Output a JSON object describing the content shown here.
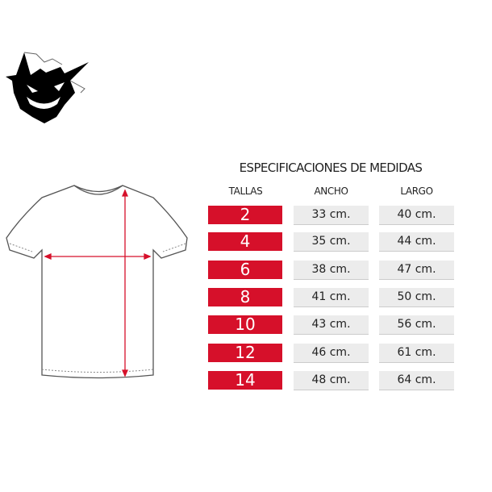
{
  "title": "ESPECIFICACIONES DE MEDIDAS",
  "headers": {
    "size": "TALLAS",
    "width": "ANCHO",
    "length": "LARGO"
  },
  "rows": [
    {
      "size": "2",
      "width": "33 cm.",
      "length": "40 cm."
    },
    {
      "size": "4",
      "width": "35 cm.",
      "length": "44 cm."
    },
    {
      "size": "6",
      "width": "38 cm.",
      "length": "47 cm."
    },
    {
      "size": "8",
      "width": "41 cm.",
      "length": "50 cm."
    },
    {
      "size": "10",
      "width": "43 cm.",
      "length": "56 cm."
    },
    {
      "size": "12",
      "width": "46 cm.",
      "length": "61 cm."
    },
    {
      "size": "14",
      "width": "48 cm.",
      "length": "64 cm."
    }
  ],
  "colors": {
    "accent": "#d6102a",
    "cell": "#ececec"
  },
  "icons": {
    "logo": "ghost-monster-logo",
    "garment": "t-shirt-diagram"
  }
}
